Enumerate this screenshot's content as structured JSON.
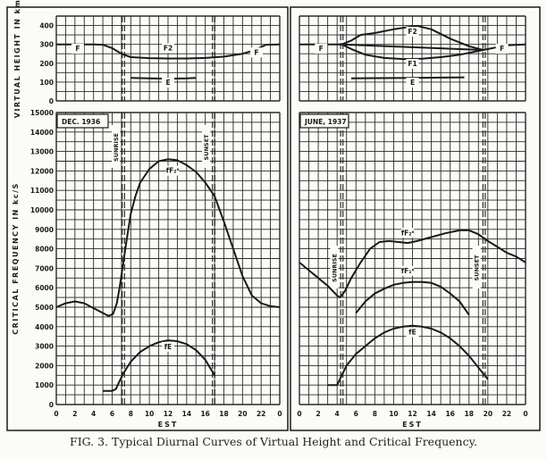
{
  "figure": {
    "caption": "FIG. 3. Typical Diurnal Curves of Virtual Height and Critical Frequency.",
    "ink_color": "#1a1a1a",
    "grid_color": "#2a2a2a",
    "panels": [
      {
        "id": "dec",
        "date_label": "DEC. 1936",
        "sunrise_label": "SUNRISE",
        "sunset_label": "SUNSET",
        "sunrise_hour": 7.2,
        "sunset_hour": 16.9
      },
      {
        "id": "june",
        "date_label": "JUNE, 1937",
        "sunrise_label": "SUNRISE",
        "sunset_label": "SUNSET",
        "sunrise_hour": 4.5,
        "sunset_hour": 19.6
      }
    ]
  },
  "chart_data": [
    {
      "type": "line",
      "panel": "dec",
      "ylabel": "VIRTUAL HEIGHT IN km",
      "xlim": [
        0,
        24
      ],
      "ylim": [
        0,
        450
      ],
      "grid": true,
      "yticks": [
        0,
        100,
        200,
        300,
        400
      ],
      "series": [
        {
          "name": "F",
          "x": [
            0,
            4,
            5,
            6,
            7,
            8,
            10,
            12,
            14,
            16,
            18,
            20,
            21,
            22,
            22.5,
            24
          ],
          "y": [
            300,
            300,
            298,
            280,
            250,
            232,
            227,
            225,
            225,
            228,
            235,
            250,
            265,
            285,
            298,
            300
          ],
          "label_at": [
            [
              2.3,
              265
            ],
            [
              21.5,
              245
            ]
          ]
        },
        {
          "name": "F2",
          "x": [],
          "y": [],
          "label_at": [
            [
              12,
              268
            ]
          ]
        },
        {
          "name": "E",
          "x": [
            8,
            10,
            12,
            14,
            15
          ],
          "y": [
            122,
            120,
            118,
            120,
            122
          ],
          "label_at": [
            [
              12,
              85
            ]
          ]
        }
      ]
    },
    {
      "type": "line",
      "panel": "june",
      "xlim": [
        0,
        24
      ],
      "ylim": [
        0,
        450
      ],
      "grid": true,
      "yticks": [
        0,
        100,
        200,
        300,
        400
      ],
      "series": [
        {
          "name": "F",
          "x": [
            0,
            4,
            4.5,
            19.5,
            21,
            22,
            24
          ],
          "y": [
            300,
            300,
            300,
            270,
            285,
            295,
            300
          ],
          "label_at": [
            [
              2.3,
              265
            ],
            [
              21.5,
              265
            ]
          ]
        },
        {
          "name": "F2",
          "x": [
            4.5,
            5.5,
            6.5,
            8,
            10,
            12,
            12.5,
            14,
            16,
            18,
            19.5
          ],
          "y": [
            300,
            320,
            350,
            360,
            380,
            395,
            398,
            380,
            330,
            290,
            270
          ],
          "label_at": [
            [
              12,
              355
            ]
          ]
        },
        {
          "name": "F1",
          "x": [
            4.5,
            5.5,
            7,
            9,
            11,
            13,
            15,
            17,
            19.5
          ],
          "y": [
            300,
            275,
            245,
            228,
            222,
            224,
            232,
            245,
            270
          ],
          "label_at": [
            [
              12,
              185
            ]
          ]
        },
        {
          "name": "E",
          "x": [
            5.5,
            8,
            12,
            16,
            17.5
          ],
          "y": [
            120,
            121,
            122,
            124,
            125
          ],
          "label_at": [
            [
              12,
              85
            ]
          ]
        }
      ]
    },
    {
      "type": "line",
      "panel": "dec",
      "ylabel": "CRITICAL FREQUENCY IN kc/S",
      "xlabel": "EST",
      "xlim": [
        0,
        24
      ],
      "ylim": [
        0,
        15000
      ],
      "grid": true,
      "xticks": [
        "0",
        "2",
        "4",
        "6",
        "8",
        "10",
        "12",
        "14",
        "16",
        "18",
        "20",
        "22",
        "0"
      ],
      "yticks": [
        0,
        1000,
        2000,
        3000,
        4000,
        5000,
        6000,
        7000,
        8000,
        9000,
        10000,
        11000,
        12000,
        13000,
        14000,
        15000
      ],
      "series": [
        {
          "name": "fF2x",
          "label": "fF₂ˣ",
          "x": [
            0,
            1,
            2,
            3,
            4,
            5,
            5.6,
            6.1,
            6.5,
            6.8,
            7.2,
            7.6,
            8,
            8.5,
            9,
            10,
            11,
            12,
            13,
            14,
            15,
            16,
            17,
            18,
            19,
            20,
            21,
            22,
            23,
            24
          ],
          "y": [
            5000,
            5200,
            5300,
            5200,
            4950,
            4700,
            4550,
            4650,
            5200,
            6000,
            7300,
            8600,
            9800,
            10700,
            11400,
            12100,
            12500,
            12600,
            12550,
            12300,
            11950,
            11400,
            10700,
            9400,
            8000,
            6600,
            5600,
            5200,
            5050,
            5000
          ],
          "label_at": [
            [
              12.5,
              11900
            ]
          ]
        },
        {
          "name": "fE",
          "label": "fE",
          "x": [
            5,
            6,
            6.4,
            6.8,
            7.2,
            8,
            9,
            10,
            11,
            12,
            13,
            14,
            15,
            16,
            17
          ],
          "y": [
            700,
            700,
            800,
            1200,
            1600,
            2200,
            2700,
            3000,
            3200,
            3300,
            3250,
            3100,
            2800,
            2300,
            1500
          ],
          "label_at": [
            [
              12,
              2850
            ]
          ]
        }
      ]
    },
    {
      "type": "line",
      "panel": "june",
      "xlabel": "EST",
      "xlim": [
        0,
        24
      ],
      "ylim": [
        0,
        15000
      ],
      "grid": true,
      "xticks": [
        "0",
        "2",
        "4",
        "6",
        "8",
        "10",
        "12",
        "14",
        "16",
        "18",
        "20",
        "22",
        "0"
      ],
      "yticks": [
        0,
        1000,
        2000,
        3000,
        4000,
        5000,
        6000,
        7000,
        8000,
        9000,
        10000,
        11000,
        12000,
        13000,
        14000,
        15000
      ],
      "series": [
        {
          "name": "fF2x",
          "label": "fF₂ˣ",
          "x": [
            0,
            1,
            2,
            3,
            4,
            4.3,
            4.8,
            5.5,
            6.5,
            7.5,
            8.5,
            9.5,
            10.5,
            11.5,
            12.5,
            14,
            15.5,
            17,
            18,
            19,
            20,
            21,
            22,
            23,
            24
          ],
          "y": [
            7300,
            6900,
            6500,
            6100,
            5600,
            5500,
            5800,
            6500,
            7300,
            8000,
            8350,
            8400,
            8350,
            8300,
            8400,
            8600,
            8800,
            8950,
            8950,
            8750,
            8400,
            8100,
            7800,
            7600,
            7300
          ],
          "label_at": [
            [
              11.5,
              8700
            ]
          ]
        },
        {
          "name": "fF1x",
          "label": "fF₁ˣ",
          "x": [
            6,
            7,
            8,
            9,
            10,
            11,
            12,
            13,
            14,
            15,
            16,
            17,
            18
          ],
          "y": [
            4700,
            5300,
            5700,
            5950,
            6150,
            6250,
            6300,
            6300,
            6250,
            6050,
            5700,
            5300,
            4600
          ],
          "label_at": [
            [
              11.5,
              6750
            ]
          ]
        },
        {
          "name": "fE",
          "label": "fE",
          "x": [
            3,
            4,
            4.5,
            5,
            6,
            7,
            8,
            9,
            10,
            11,
            12,
            13,
            14,
            15,
            16,
            17,
            18,
            19,
            20
          ],
          "y": [
            1000,
            1000,
            1500,
            2000,
            2600,
            3000,
            3400,
            3700,
            3900,
            4000,
            4050,
            4000,
            3900,
            3700,
            3400,
            3000,
            2500,
            1900,
            1300
          ],
          "label_at": [
            [
              12,
              3600
            ]
          ]
        }
      ]
    }
  ]
}
